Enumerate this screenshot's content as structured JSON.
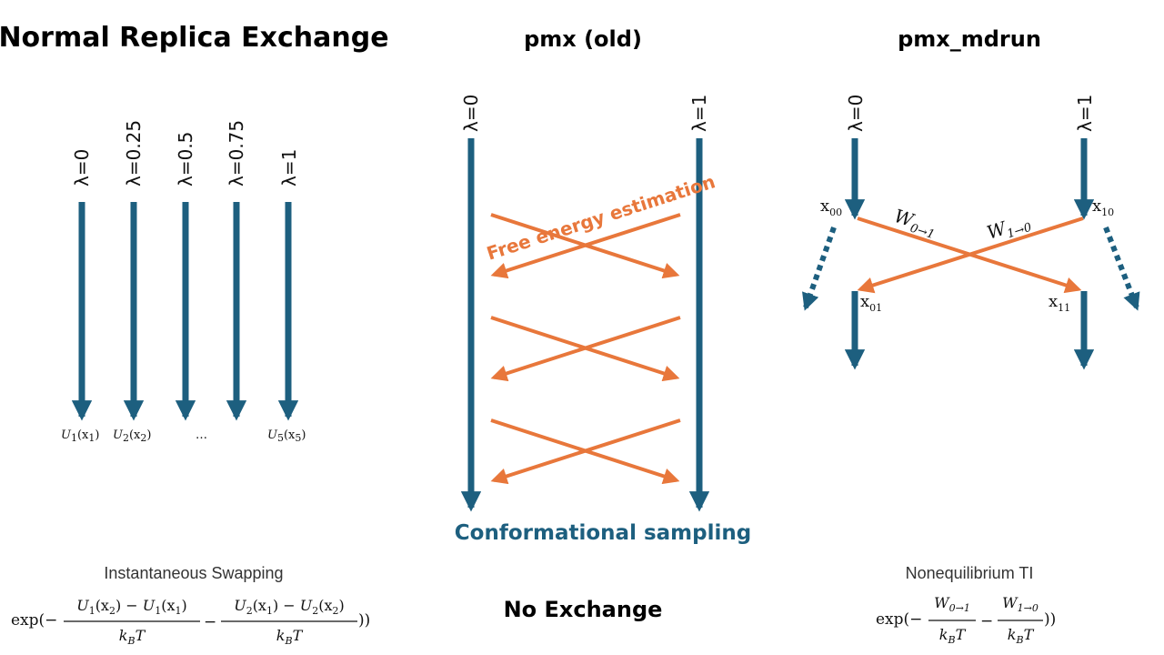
{
  "colors": {
    "blue": "#1d5f7f",
    "orange": "#e8773b"
  },
  "panel1": {
    "title": "Normal Replica Exchange",
    "lambdas": [
      "λ=0",
      "λ=0.25",
      "λ=0.5",
      "λ=0.75",
      "λ=1"
    ],
    "energy_labels": [
      "U1(x1)",
      "U2(x2)",
      "…",
      "U5(x5)"
    ],
    "caption": "Instantaneous Swapping",
    "formula": {
      "prefix": "exp(−",
      "num1": "U1(x2) − U1(x1)",
      "den": "kBT",
      "minus": "−",
      "num2": "U2(x1) − U2(x2)",
      "suffix": "))"
    }
  },
  "panel2": {
    "title": "pmx (old)",
    "lambda_left": "λ=0",
    "lambda_right": "λ=1",
    "free_energy_label": "Free energy estimation",
    "sampling_label": "Conformational sampling",
    "caption": "No Exchange"
  },
  "panel3": {
    "title": "pmx_mdrun",
    "lambda_left": "λ=0",
    "lambda_right": "λ=1",
    "state_labels": [
      "x00",
      "x10",
      "x01",
      "x11"
    ],
    "work_labels": [
      "W0→1",
      "W1→0"
    ],
    "caption": "Nonequilibrium TI",
    "formula": {
      "prefix": "exp(−",
      "num1": "W0→1",
      "den": "kBT",
      "minus": "−",
      "num2": "W1→0",
      "suffix": "))"
    }
  }
}
